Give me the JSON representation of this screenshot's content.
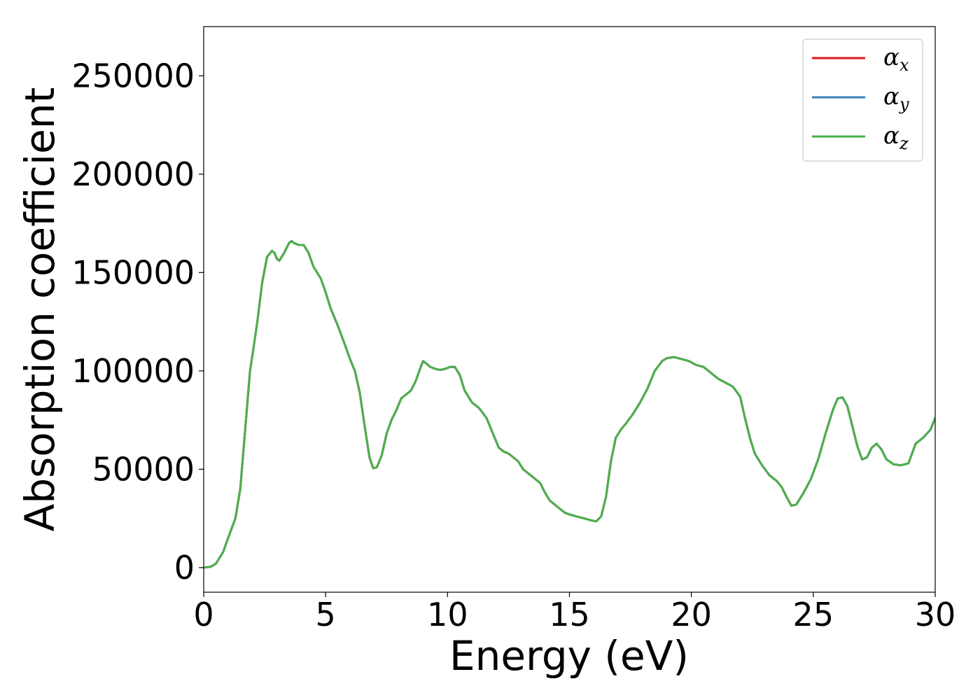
{
  "chart_data": {
    "type": "line",
    "title": "",
    "xlabel": "Energy (eV)",
    "ylabel": "Absorption coefficient",
    "xlim": [
      0,
      30
    ],
    "ylim": [
      -12500,
      275000
    ],
    "xticks": [
      0,
      5,
      10,
      15,
      20,
      25,
      30
    ],
    "xtick_labels": [
      "0",
      "5",
      "10",
      "15",
      "20",
      "25",
      "30"
    ],
    "yticks": [
      0,
      50000,
      100000,
      150000,
      200000,
      250000
    ],
    "ytick_labels": [
      "0",
      "50000",
      "100000",
      "150000",
      "200000",
      "250000"
    ],
    "grid": false,
    "legend_position": "top-right",
    "series": [
      {
        "name": "αx",
        "symbol": "α",
        "subscript": "x",
        "color": "#e41a1c",
        "x": [
          0,
          0.3,
          0.5,
          0.8,
          1.0,
          1.3,
          1.5,
          1.7,
          1.9,
          2.0,
          2.2,
          2.4,
          2.6,
          2.8,
          2.9,
          3.0,
          3.1,
          3.3,
          3.5,
          3.6,
          3.7,
          3.9,
          4.1,
          4.3,
          4.5,
          4.8,
          5.0,
          5.2,
          5.5,
          5.8,
          6.0,
          6.2,
          6.4,
          6.6,
          6.8,
          6.95,
          7.1,
          7.3,
          7.5,
          7.7,
          7.9,
          8.1,
          8.3,
          8.5,
          8.7,
          8.9,
          9.0,
          9.1,
          9.3,
          9.5,
          9.7,
          9.9,
          10.1,
          10.3,
          10.5,
          10.7,
          11.0,
          11.3,
          11.6,
          11.9,
          12.1,
          12.3,
          12.5,
          12.7,
          12.9,
          13.1,
          13.3,
          13.5,
          13.8,
          14.0,
          14.2,
          14.5,
          14.8,
          15.0,
          15.3,
          15.6,
          15.9,
          16.1,
          16.3,
          16.5,
          16.7,
          16.9,
          17.1,
          17.3,
          17.6,
          17.9,
          18.2,
          18.5,
          18.8,
          19.0,
          19.3,
          19.6,
          19.9,
          20.2,
          20.5,
          20.8,
          21.1,
          21.4,
          21.7,
          22.0,
          22.2,
          22.4,
          22.6,
          22.9,
          23.2,
          23.5,
          23.7,
          23.9,
          24.1,
          24.3,
          24.6,
          24.9,
          25.2,
          25.5,
          25.8,
          26.0,
          26.2,
          26.4,
          26.6,
          26.8,
          27.0,
          27.2,
          27.4,
          27.6,
          27.8,
          28.0,
          28.3,
          28.6,
          28.9,
          29.2,
          29.5,
          29.8,
          30.0
        ],
        "y": [
          0,
          500,
          2000,
          8000,
          15000,
          25000,
          40000,
          70000,
          100000,
          108000,
          125000,
          145000,
          158000,
          161000,
          160000,
          157000,
          156000,
          160000,
          165000,
          166000,
          165000,
          164000,
          164000,
          160000,
          153000,
          147000,
          140000,
          132000,
          123000,
          113000,
          106000,
          100000,
          89000,
          72000,
          56000,
          50500,
          51000,
          57000,
          68000,
          75000,
          80000,
          86000,
          88000,
          90000,
          95000,
          102000,
          105000,
          104000,
          102000,
          101000,
          100500,
          101000,
          102000,
          102000,
          98000,
          90000,
          84000,
          81000,
          76000,
          67000,
          61000,
          59000,
          58000,
          56000,
          54000,
          50000,
          48000,
          46000,
          43000,
          38000,
          34000,
          31000,
          28000,
          27000,
          26000,
          25000,
          24000,
          23500,
          26000,
          36000,
          54000,
          66000,
          70000,
          73000,
          78000,
          84000,
          91000,
          100000,
          105000,
          106500,
          107000,
          106000,
          105000,
          103000,
          102000,
          99000,
          96000,
          94000,
          92000,
          87000,
          76000,
          66000,
          58000,
          52000,
          47000,
          44000,
          41000,
          36000,
          31500,
          32000,
          38000,
          45000,
          55000,
          68000,
          80000,
          86000,
          86500,
          82000,
          72000,
          62000,
          55000,
          56000,
          61000,
          63000,
          60000,
          55000,
          52500,
          52000,
          53000,
          63000,
          66000,
          70000,
          76000
        ]
      },
      {
        "name": "αy",
        "symbol": "α",
        "subscript": "y",
        "color": "#377eb8",
        "x": [
          0,
          0.3,
          0.5,
          0.8,
          1.0,
          1.3,
          1.5,
          1.7,
          1.9,
          2.0,
          2.2,
          2.4,
          2.6,
          2.8,
          2.9,
          3.0,
          3.1,
          3.3,
          3.5,
          3.6,
          3.7,
          3.9,
          4.1,
          4.3,
          4.5,
          4.8,
          5.0,
          5.2,
          5.5,
          5.8,
          6.0,
          6.2,
          6.4,
          6.6,
          6.8,
          6.95,
          7.1,
          7.3,
          7.5,
          7.7,
          7.9,
          8.1,
          8.3,
          8.5,
          8.7,
          8.9,
          9.0,
          9.1,
          9.3,
          9.5,
          9.7,
          9.9,
          10.1,
          10.3,
          10.5,
          10.7,
          11.0,
          11.3,
          11.6,
          11.9,
          12.1,
          12.3,
          12.5,
          12.7,
          12.9,
          13.1,
          13.3,
          13.5,
          13.8,
          14.0,
          14.2,
          14.5,
          14.8,
          15.0,
          15.3,
          15.6,
          15.9,
          16.1,
          16.3,
          16.5,
          16.7,
          16.9,
          17.1,
          17.3,
          17.6,
          17.9,
          18.2,
          18.5,
          18.8,
          19.0,
          19.3,
          19.6,
          19.9,
          20.2,
          20.5,
          20.8,
          21.1,
          21.4,
          21.7,
          22.0,
          22.2,
          22.4,
          22.6,
          22.9,
          23.2,
          23.5,
          23.7,
          23.9,
          24.1,
          24.3,
          24.6,
          24.9,
          25.2,
          25.5,
          25.8,
          26.0,
          26.2,
          26.4,
          26.6,
          26.8,
          27.0,
          27.2,
          27.4,
          27.6,
          27.8,
          28.0,
          28.3,
          28.6,
          28.9,
          29.2,
          29.5,
          29.8,
          30.0
        ],
        "y": [
          0,
          500,
          2000,
          8000,
          15000,
          25000,
          40000,
          70000,
          100000,
          108000,
          125000,
          145000,
          158000,
          161000,
          160000,
          157000,
          156000,
          160000,
          165000,
          166000,
          165000,
          164000,
          164000,
          160000,
          153000,
          147000,
          140000,
          132000,
          123000,
          113000,
          106000,
          100000,
          89000,
          72000,
          56000,
          50500,
          51000,
          57000,
          68000,
          75000,
          80000,
          86000,
          88000,
          90000,
          95000,
          102000,
          105000,
          104000,
          102000,
          101000,
          100500,
          101000,
          102000,
          102000,
          98000,
          90000,
          84000,
          81000,
          76000,
          67000,
          61000,
          59000,
          58000,
          56000,
          54000,
          50000,
          48000,
          46000,
          43000,
          38000,
          34000,
          31000,
          28000,
          27000,
          26000,
          25000,
          24000,
          23500,
          26000,
          36000,
          54000,
          66000,
          70000,
          73000,
          78000,
          84000,
          91000,
          100000,
          105000,
          106500,
          107000,
          106000,
          105000,
          103000,
          102000,
          99000,
          96000,
          94000,
          92000,
          87000,
          76000,
          66000,
          58000,
          52000,
          47000,
          44000,
          41000,
          36000,
          31500,
          32000,
          38000,
          45000,
          55000,
          68000,
          80000,
          86000,
          86500,
          82000,
          72000,
          62000,
          55000,
          56000,
          61000,
          63000,
          60000,
          55000,
          52500,
          52000,
          53000,
          63000,
          66000,
          70000,
          76000
        ]
      },
      {
        "name": "αz",
        "symbol": "α",
        "subscript": "z",
        "color": "#4daf4a",
        "x": [
          0,
          0.3,
          0.5,
          0.8,
          1.0,
          1.3,
          1.5,
          1.7,
          1.9,
          2.0,
          2.2,
          2.4,
          2.6,
          2.8,
          2.9,
          3.0,
          3.1,
          3.3,
          3.5,
          3.6,
          3.7,
          3.9,
          4.1,
          4.3,
          4.5,
          4.8,
          5.0,
          5.2,
          5.5,
          5.8,
          6.0,
          6.2,
          6.4,
          6.6,
          6.8,
          6.95,
          7.1,
          7.3,
          7.5,
          7.7,
          7.9,
          8.1,
          8.3,
          8.5,
          8.7,
          8.9,
          9.0,
          9.1,
          9.3,
          9.5,
          9.7,
          9.9,
          10.1,
          10.3,
          10.5,
          10.7,
          11.0,
          11.3,
          11.6,
          11.9,
          12.1,
          12.3,
          12.5,
          12.7,
          12.9,
          13.1,
          13.3,
          13.5,
          13.8,
          14.0,
          14.2,
          14.5,
          14.8,
          15.0,
          15.3,
          15.6,
          15.9,
          16.1,
          16.3,
          16.5,
          16.7,
          16.9,
          17.1,
          17.3,
          17.6,
          17.9,
          18.2,
          18.5,
          18.8,
          19.0,
          19.3,
          19.6,
          19.9,
          20.2,
          20.5,
          20.8,
          21.1,
          21.4,
          21.7,
          22.0,
          22.2,
          22.4,
          22.6,
          22.9,
          23.2,
          23.5,
          23.7,
          23.9,
          24.1,
          24.3,
          24.6,
          24.9,
          25.2,
          25.5,
          25.8,
          26.0,
          26.2,
          26.4,
          26.6,
          26.8,
          27.0,
          27.2,
          27.4,
          27.6,
          27.8,
          28.0,
          28.3,
          28.6,
          28.9,
          29.2,
          29.5,
          29.8,
          30.0
        ],
        "y": [
          0,
          500,
          2000,
          8000,
          15000,
          25000,
          40000,
          70000,
          100000,
          108000,
          125000,
          145000,
          158000,
          161000,
          160000,
          157000,
          156000,
          160000,
          165000,
          166000,
          165000,
          164000,
          164000,
          160000,
          153000,
          147000,
          140000,
          132000,
          123000,
          113000,
          106000,
          100000,
          89000,
          72000,
          56000,
          50500,
          51000,
          57000,
          68000,
          75000,
          80000,
          86000,
          88000,
          90000,
          95000,
          102000,
          105000,
          104000,
          102000,
          101000,
          100500,
          101000,
          102000,
          102000,
          98000,
          90000,
          84000,
          81000,
          76000,
          67000,
          61000,
          59000,
          58000,
          56000,
          54000,
          50000,
          48000,
          46000,
          43000,
          38000,
          34000,
          31000,
          28000,
          27000,
          26000,
          25000,
          24000,
          23500,
          26000,
          36000,
          54000,
          66000,
          70000,
          73000,
          78000,
          84000,
          91000,
          100000,
          105000,
          106500,
          107000,
          106000,
          105000,
          103000,
          102000,
          99000,
          96000,
          94000,
          92000,
          87000,
          76000,
          66000,
          58000,
          52000,
          47000,
          44000,
          41000,
          36000,
          31500,
          32000,
          38000,
          45000,
          55000,
          68000,
          80000,
          86000,
          86500,
          82000,
          72000,
          62000,
          55000,
          56000,
          61000,
          63000,
          60000,
          55000,
          52500,
          52000,
          53000,
          63000,
          66000,
          70000,
          76000
        ]
      }
    ]
  }
}
